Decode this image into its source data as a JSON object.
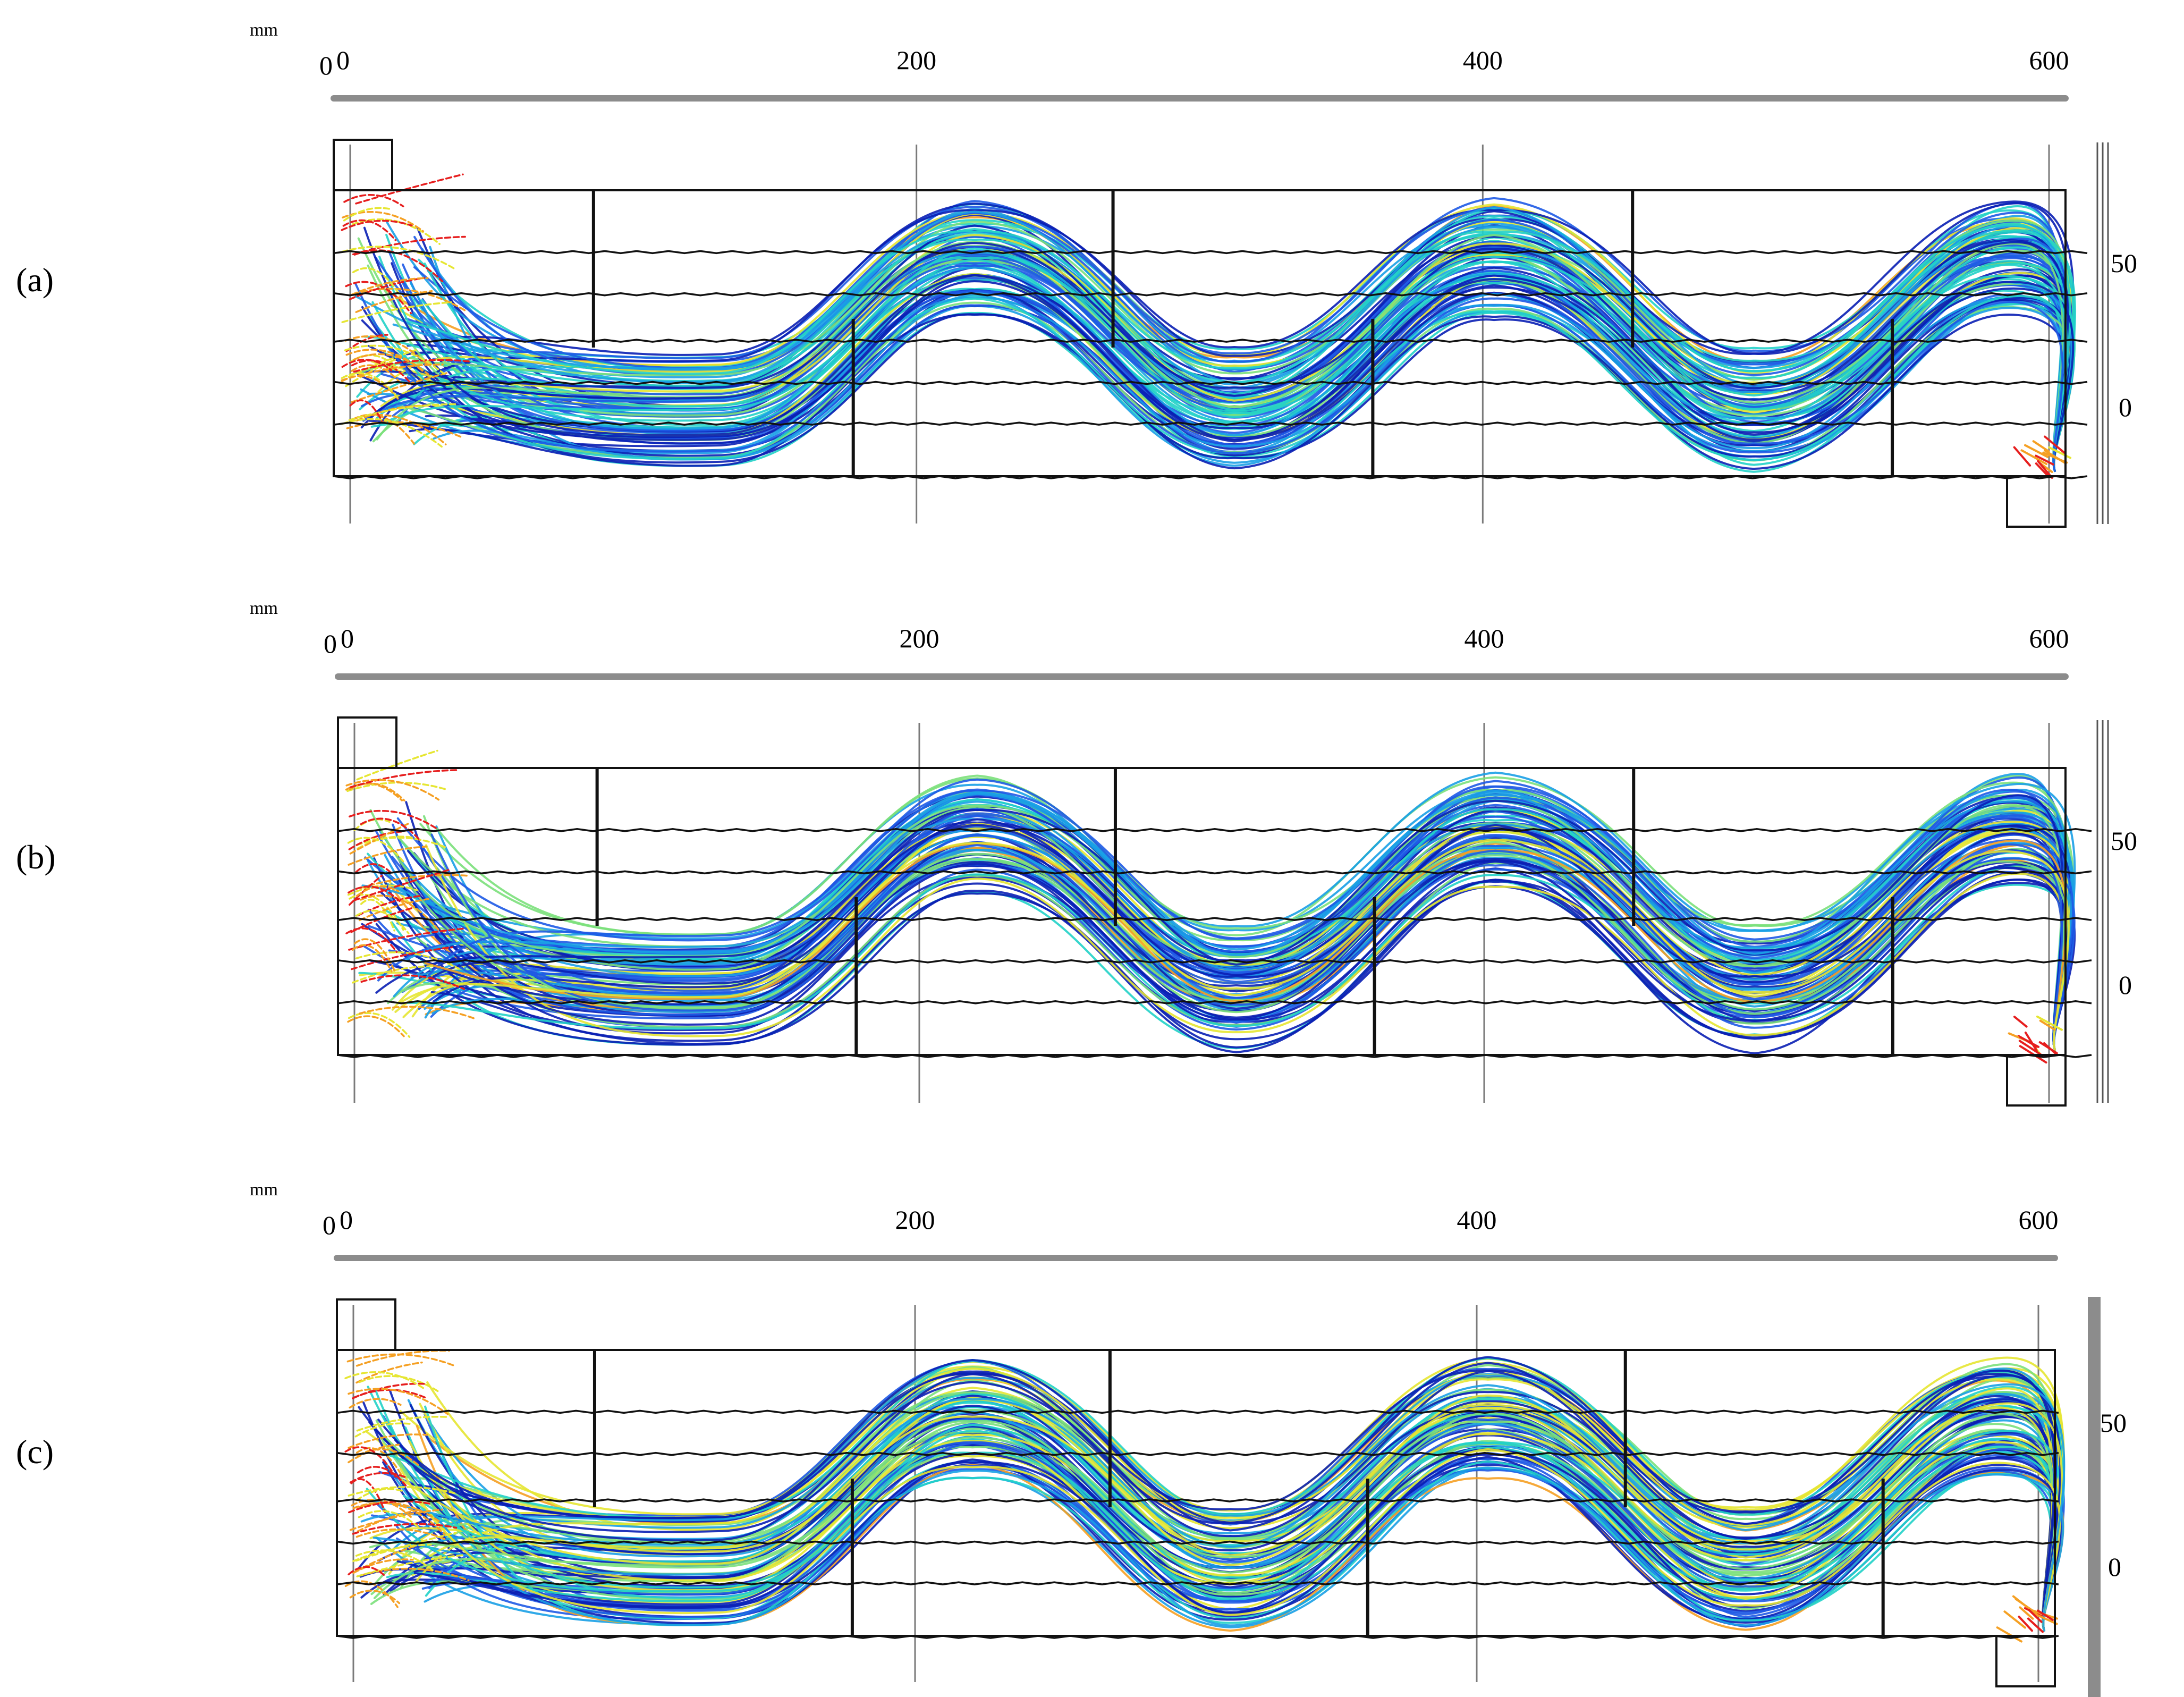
{
  "figure": {
    "unit": "mm",
    "x_axis_ticks": [
      "0",
      "200",
      "400",
      "600"
    ],
    "x_axis_origin_extra": "0",
    "y_axis_ticks": [
      "50",
      "0"
    ],
    "colormap": [
      "#0a1fb4",
      "#1e5ae6",
      "#1aa0e6",
      "#22d2c8",
      "#7be07b",
      "#e6e632",
      "#f5a023",
      "#e61e1e"
    ]
  },
  "panels": [
    {
      "label": "(a)",
      "letter": "a",
      "outlet_extended": true
    },
    {
      "label": "(b)",
      "letter": "b",
      "outlet_extended": true
    },
    {
      "label": "(c)",
      "letter": "c",
      "outlet_extended": false
    }
  ]
}
